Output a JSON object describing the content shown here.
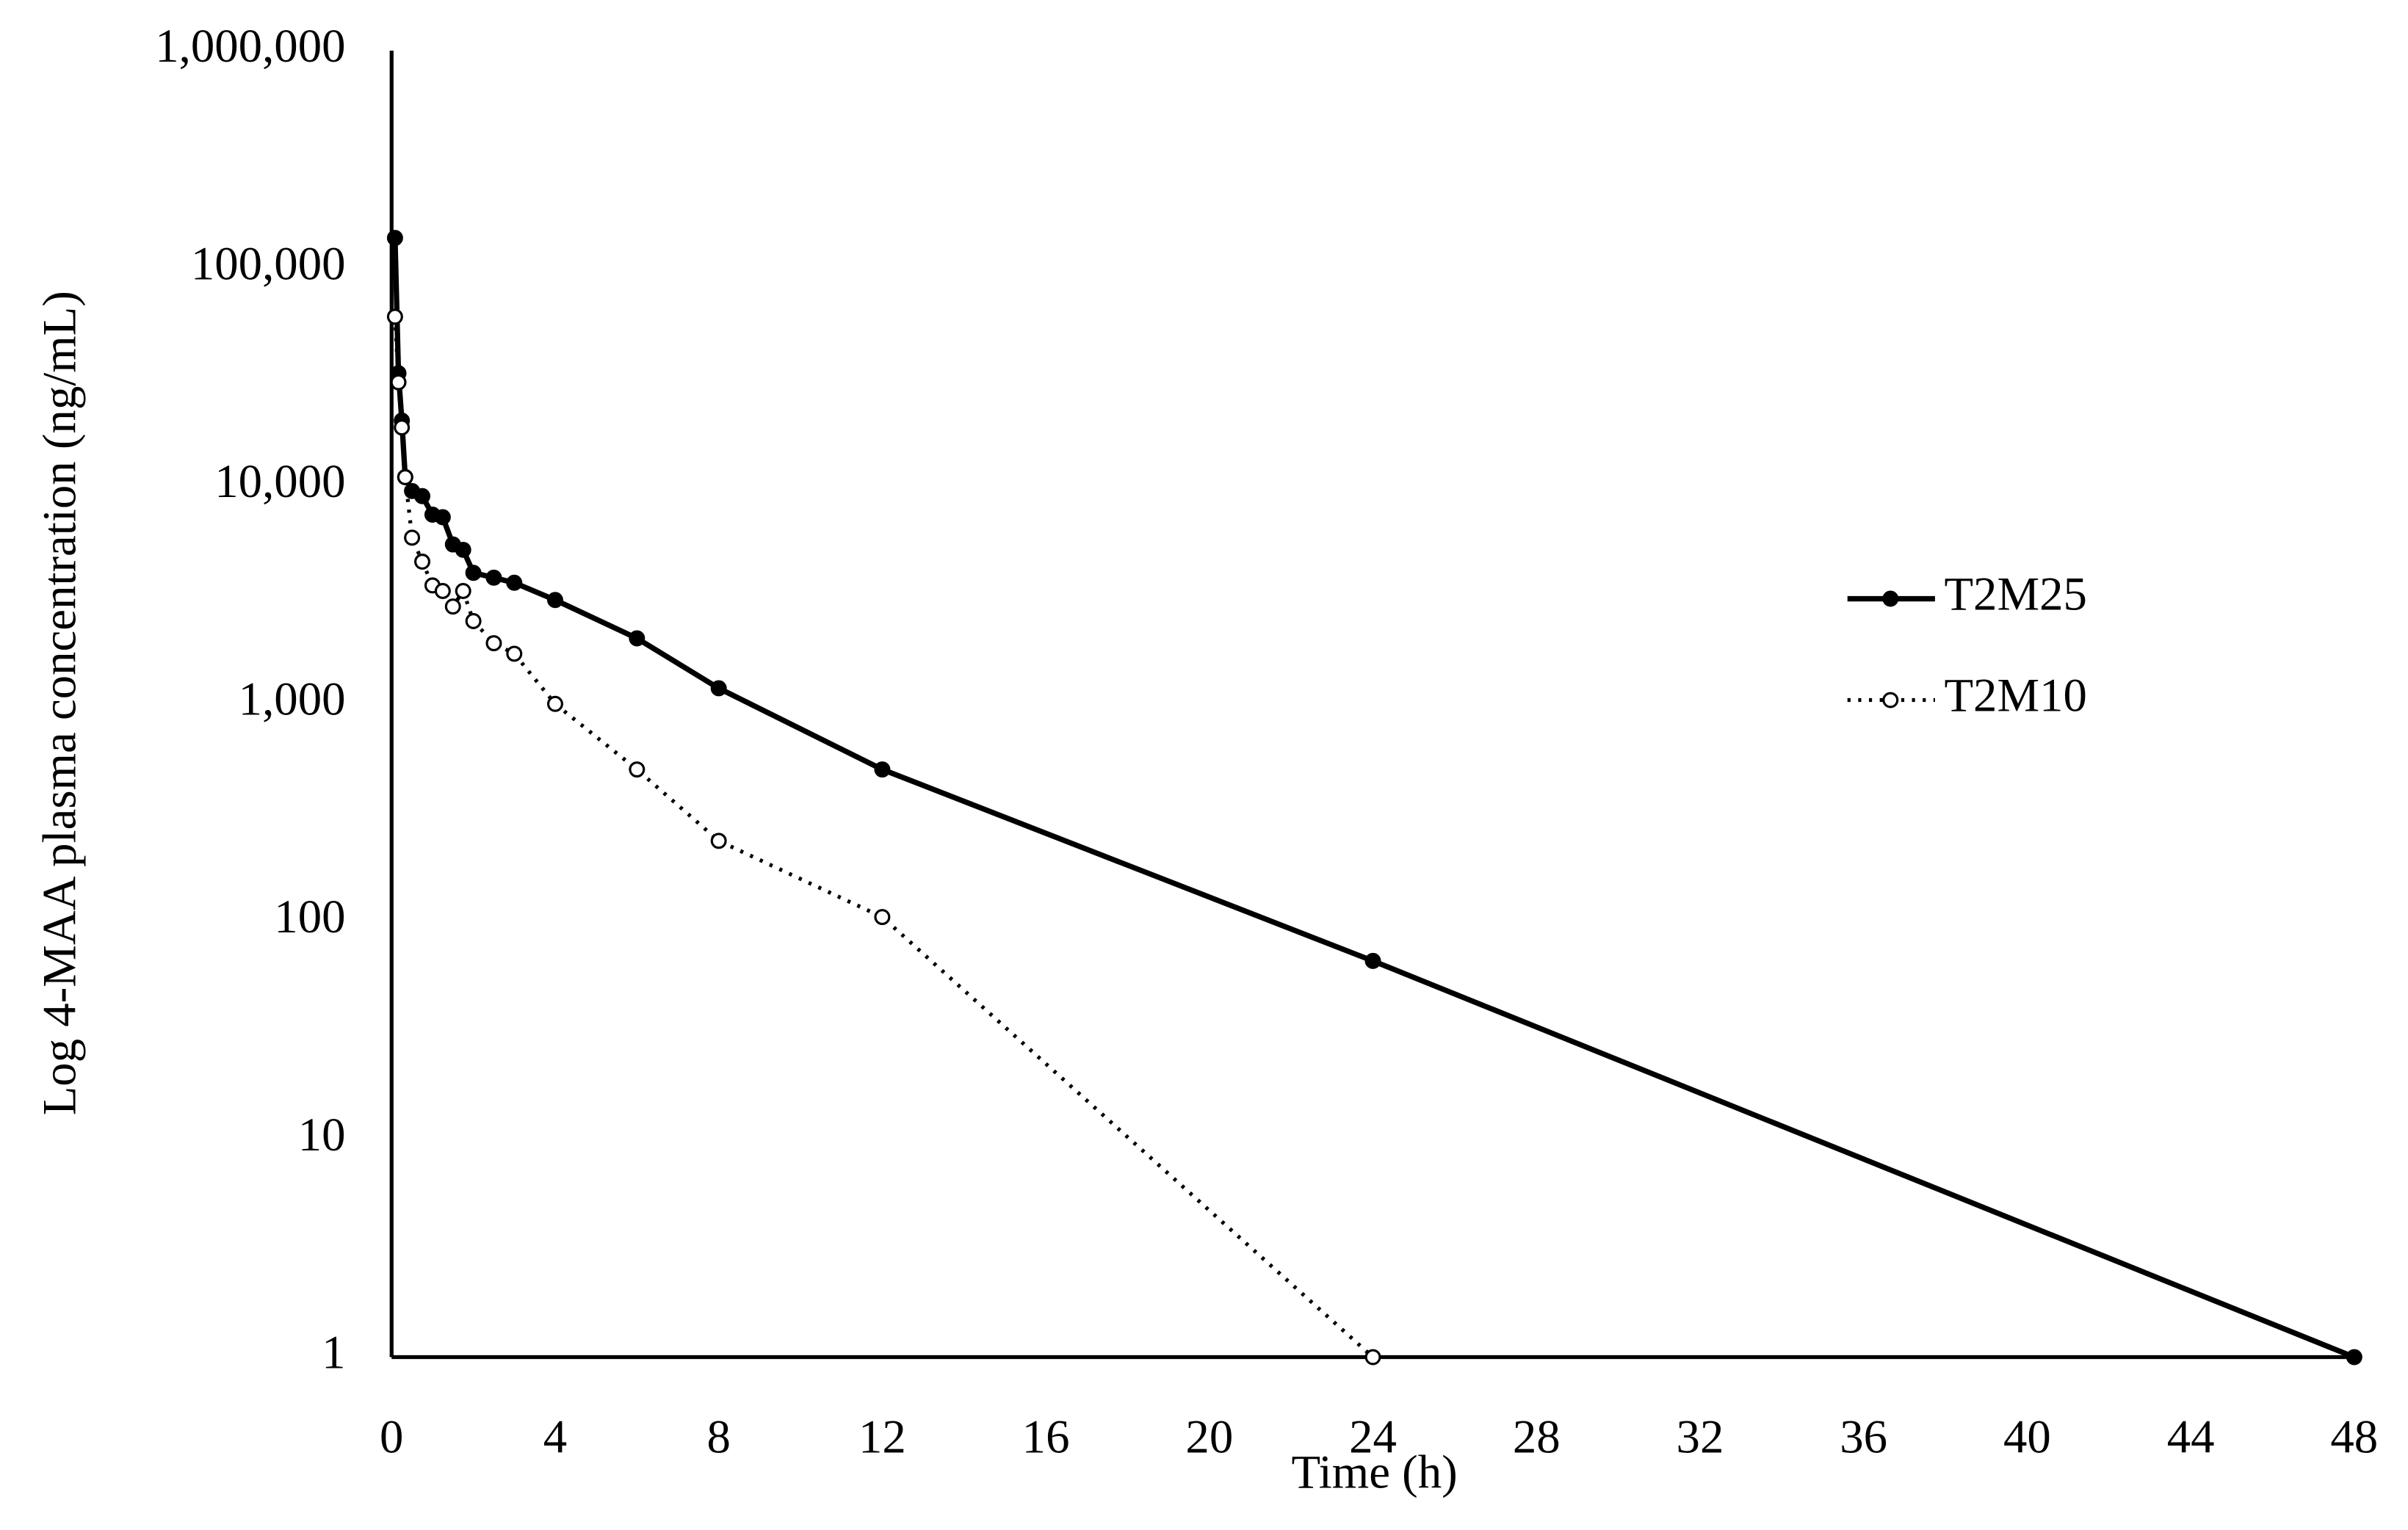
{
  "chart_data": {
    "type": "line",
    "x_label": "Time (h)",
    "y_label": "Log 4-MAA plasma concentration (ng/mL)",
    "log_y": true,
    "legend": "right",
    "x": [
      0.083,
      0.167,
      0.25,
      0.333,
      0.5,
      0.75,
      1,
      1.25,
      1.5,
      1.75,
      2,
      2.5,
      3,
      4,
      6,
      8,
      12,
      24,
      48
    ],
    "series": [
      {
        "name": "T2M25",
        "color": "#000000",
        "line_style": "solid",
        "marker_fill": "#000000",
        "values": [
          138000,
          33000,
          20000,
          11000,
          9500,
          9000,
          7400,
          7200,
          5400,
          5100,
          4000,
          3800,
          3600,
          3000,
          2000,
          1180,
          500,
          66,
          1
        ]
      },
      {
        "name": "T2M10",
        "color": "#000000",
        "line_style": "dotted",
        "marker_fill": "#ffffff",
        "values": [
          60000,
          30000,
          18600,
          11000,
          5800,
          4500,
          3500,
          3300,
          2800,
          3300,
          2400,
          1900,
          1700,
          1000,
          500,
          235,
          105,
          1,
          null
        ]
      }
    ],
    "xlim": [
      0,
      48
    ],
    "xticks": [
      0,
      4,
      8,
      12,
      16,
      20,
      24,
      28,
      32,
      36,
      40,
      44,
      48
    ],
    "ylim": [
      1,
      1000000
    ],
    "yticks": [
      1,
      10,
      100,
      {
        "value": 1000,
        "label": "1,000"
      },
      {
        "value": 10000,
        "label": "10,000"
      },
      {
        "value": 100000,
        "label": "100,000"
      },
      {
        "value": 1000000,
        "label": "1,000,000"
      }
    ]
  }
}
